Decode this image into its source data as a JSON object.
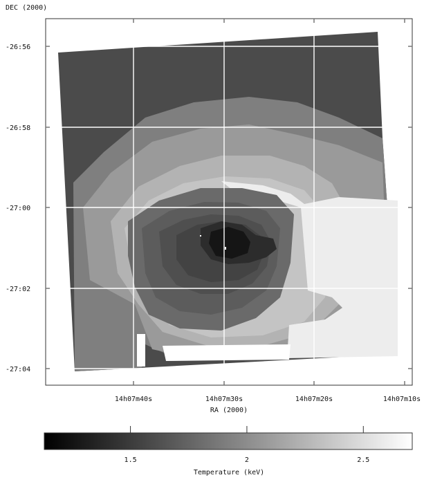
{
  "axes": {
    "y_title": "DEC (2000)",
    "x_title": "RA (2000)",
    "y_ticks": [
      {
        "label": "-26:56",
        "value": -26.9333
      },
      {
        "label": "-26:58",
        "value": -26.9667
      },
      {
        "label": "-27:00",
        "value": -27.0
      },
      {
        "label": "-27:02",
        "value": -27.0333
      },
      {
        "label": "-27:04",
        "value": -27.0667
      }
    ],
    "x_ticks": [
      {
        "label": "14h07m40s",
        "value": 40
      },
      {
        "label": "14h07m30s",
        "value": 30
      },
      {
        "label": "14h07m20s",
        "value": 20
      },
      {
        "label": "14h07m10s",
        "value": 10
      }
    ],
    "grid": true
  },
  "colorbar": {
    "title": "Temperature (keV)",
    "ticks": [
      {
        "label": "1.5",
        "value": 1.5
      },
      {
        "label": "2",
        "value": 2.0
      },
      {
        "label": "2.5",
        "value": 2.5
      }
    ],
    "range": [
      1.13,
      2.71
    ],
    "colormap": "grayscale (black = low, white = high)"
  },
  "map_regions": [
    {
      "region": "outer",
      "gray": "#4b4b4b"
    },
    {
      "region": "ring-1",
      "gray": "#7f7f7f"
    },
    {
      "region": "ring-2",
      "gray": "#9a9a9a"
    },
    {
      "region": "ring-3",
      "gray": "#b3b3b3"
    },
    {
      "region": "ring-4",
      "gray": "#c4c4c4"
    },
    {
      "region": "bright-arc",
      "gray": "#ededed"
    },
    {
      "region": "mid-1",
      "gray": "#6a6a6a"
    },
    {
      "region": "mid-2",
      "gray": "#5c5c5c"
    },
    {
      "region": "mid-3",
      "gray": "#4f4f4f"
    },
    {
      "region": "mid-4",
      "gray": "#434343"
    },
    {
      "region": "core-1",
      "gray": "#2c2c2c"
    },
    {
      "region": "core-2",
      "gray": "#151515"
    }
  ]
}
